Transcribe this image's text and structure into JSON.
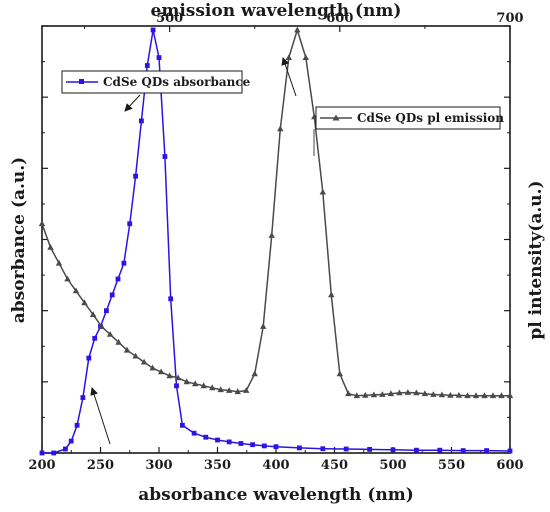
{
  "chart_data": {
    "type": "line",
    "grid": false,
    "colors": {
      "absorbance": "#2a14e6",
      "emission": "#4a4a4a",
      "axes": "#1a1a1a"
    },
    "axes": {
      "x_bottom": {
        "label": "absorbance wavelength (nm)",
        "range": [
          200,
          600
        ],
        "ticks": [
          200,
          250,
          300,
          350,
          400,
          450,
          500,
          550,
          600
        ]
      },
      "x_top": {
        "label": "emission wavelength (nm)",
        "range": [
          425,
          700
        ],
        "ticks": [
          500,
          600,
          700
        ]
      },
      "y_left": {
        "label": "absorbance (a.u.)",
        "range": [
          0,
          1.08
        ]
      },
      "y_right": {
        "label": "pl intensity(a.u.)",
        "range": [
          0,
          1.08
        ]
      }
    },
    "series": [
      {
        "name": "CdSe QDs absorbance",
        "axis": "bottom-left",
        "marker": "square",
        "x": [
          200,
          210,
          220,
          225,
          230,
          235,
          240,
          245,
          250,
          255,
          260,
          265,
          270,
          275,
          280,
          285,
          290,
          295,
          300,
          305,
          310,
          315,
          320,
          330,
          340,
          350,
          360,
          370,
          380,
          390,
          400,
          420,
          440,
          460,
          480,
          500,
          520,
          540,
          560,
          580,
          600
        ],
        "y": [
          0.0,
          0.0,
          0.01,
          0.03,
          0.07,
          0.14,
          0.24,
          0.29,
          0.32,
          0.36,
          0.4,
          0.44,
          0.48,
          0.58,
          0.7,
          0.84,
          0.98,
          1.07,
          1.0,
          0.75,
          0.39,
          0.17,
          0.07,
          0.05,
          0.04,
          0.033,
          0.028,
          0.024,
          0.021,
          0.018,
          0.016,
          0.013,
          0.011,
          0.01,
          0.009,
          0.008,
          0.007,
          0.007,
          0.006,
          0.006,
          0.005
        ]
      },
      {
        "name": "CdSe QDs pl emission",
        "axis": "top-right",
        "marker": "triangle",
        "x": [
          425,
          430,
          435,
          440,
          445,
          450,
          455,
          460,
          465,
          470,
          475,
          480,
          485,
          490,
          495,
          500,
          505,
          510,
          515,
          520,
          525,
          530,
          535,
          540,
          545,
          550,
          555,
          560,
          565,
          570,
          575,
          580,
          585,
          590,
          595,
          600,
          605,
          610,
          615,
          620,
          625,
          630,
          635,
          640,
          645,
          650,
          655,
          660,
          665,
          670,
          675,
          680,
          685,
          690,
          695,
          700
        ],
        "y": [
          0.58,
          0.52,
          0.48,
          0.44,
          0.41,
          0.38,
          0.35,
          0.32,
          0.3,
          0.28,
          0.26,
          0.245,
          0.23,
          0.215,
          0.205,
          0.195,
          0.19,
          0.18,
          0.175,
          0.17,
          0.165,
          0.16,
          0.158,
          0.155,
          0.158,
          0.2,
          0.32,
          0.55,
          0.82,
          1.0,
          1.07,
          1.0,
          0.85,
          0.66,
          0.4,
          0.2,
          0.15,
          0.145,
          0.146,
          0.147,
          0.148,
          0.15,
          0.152,
          0.153,
          0.152,
          0.15,
          0.148,
          0.147,
          0.146,
          0.146,
          0.145,
          0.145,
          0.145,
          0.145,
          0.145,
          0.145
        ]
      }
    ],
    "legend": [
      {
        "label": "CdSe QDs absorbance",
        "series": 0,
        "position": "top-left",
        "arrow": "points down-left to absorbance peak; second arrow from baseline points up to left axis"
      },
      {
        "label": "CdSe QDs pl emission",
        "series": 1,
        "position": "top-right",
        "arrow": "points up-left to top axis; line to emission peak"
      }
    ]
  }
}
